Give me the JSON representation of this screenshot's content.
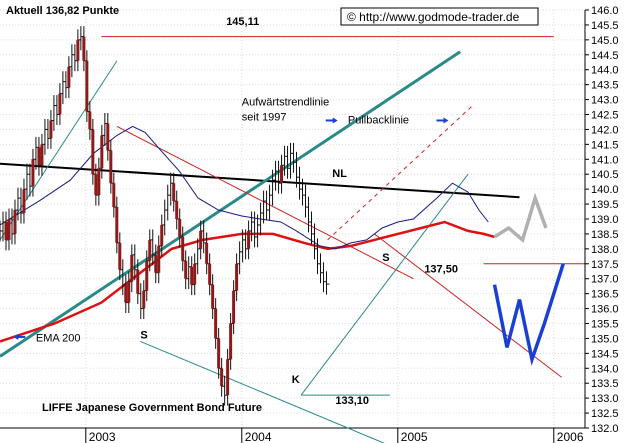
{
  "chart_data": {
    "type": "line",
    "title": "LIFFE Japanese Government Bond Future",
    "header": "Aktuell 136,82 Punkte",
    "source": "© http://www.godmode-trader.de",
    "y_axis": {
      "min": 132.0,
      "max": 146.0,
      "step": 0.5,
      "side": "right",
      "decimals": 1
    },
    "x_axis": {
      "years": [
        {
          "label": "2003",
          "x": 2003.0
        },
        {
          "label": "2004",
          "x": 2004.0
        },
        {
          "label": "2005",
          "x": 2005.0
        },
        {
          "label": "2006",
          "x": 2006.0
        }
      ],
      "range": [
        2002.45,
        2006.2
      ]
    },
    "grid": true,
    "price": {
      "start": 2002.45,
      "step": 0.0192,
      "closes": [
        138.6,
        138.9,
        138.3,
        139.0,
        138.5,
        139.3,
        139.7,
        139.2,
        140.0,
        140.5,
        140.1,
        141.0,
        141.4,
        140.8,
        141.5,
        142.0,
        141.7,
        142.3,
        142.8,
        142.5,
        143.2,
        143.6,
        143.4,
        144.1,
        144.5,
        144.3,
        145.0,
        145.11,
        144.3,
        142.6,
        142.0,
        140.5,
        139.8,
        140.7,
        141.8,
        142.2,
        141.3,
        140.2,
        139.4,
        138.2,
        137.3,
        136.8,
        136.2,
        136.9,
        137.8,
        137.3,
        136.5,
        136.0,
        136.6,
        137.6,
        138.3,
        137.8,
        137.2,
        138.1,
        138.8,
        139.3,
        139.8,
        140.2,
        139.6,
        139.0,
        138.4,
        137.6,
        137.0,
        137.4,
        136.8,
        137.5,
        138.0,
        138.6,
        138.2,
        137.5,
        136.8,
        136.0,
        135.0,
        134.0,
        133.4,
        133.1,
        134.3,
        135.5,
        136.6,
        137.5,
        137.9,
        138.3,
        138.0,
        138.6,
        138.9,
        138.4,
        138.8,
        139.2,
        139.6,
        139.3,
        139.8,
        140.3,
        140.6,
        140.2,
        140.8,
        141.1,
        140.7,
        141.2,
        140.9,
        140.4,
        140.0,
        139.8,
        139.4,
        138.9,
        138.5,
        138.0,
        137.5,
        137.2,
        136.9,
        136.82
      ]
    },
    "ema200": {
      "x": [
        2002.45,
        2002.8,
        2003.1,
        2003.35,
        2003.55,
        2003.75,
        2004.0,
        2004.2,
        2004.4,
        2004.55,
        2004.7,
        2004.85,
        2005.0,
        2005.15,
        2005.3,
        2005.45,
        2005.55,
        2005.62
      ],
      "y": [
        134.9,
        135.5,
        136.2,
        137.2,
        138.0,
        138.3,
        138.5,
        138.5,
        138.2,
        138.0,
        138.1,
        138.3,
        138.5,
        138.7,
        138.9,
        138.6,
        138.5,
        138.4
      ]
    },
    "avg_short": {
      "x": [
        2002.45,
        2002.7,
        2002.9,
        2003.05,
        2003.2,
        2003.3,
        2003.38,
        2003.48,
        2003.6,
        2003.72,
        2003.85,
        2004.0,
        2004.12,
        2004.25,
        2004.35,
        2004.5,
        2004.6,
        2004.7,
        2004.8,
        2004.9,
        2005.0,
        2005.1,
        2005.25,
        2005.35,
        2005.45,
        2005.52,
        2005.58
      ],
      "y": [
        138.8,
        139.6,
        140.3,
        141.2,
        141.8,
        142.1,
        141.9,
        141.3,
        140.6,
        139.7,
        139.3,
        139.1,
        139.0,
        138.9,
        138.6,
        138.1,
        138.0,
        138.2,
        138.3,
        138.7,
        138.9,
        139.0,
        139.7,
        140.2,
        139.9,
        139.3,
        138.9
      ]
    },
    "lines": [
      {
        "name": "resistance-145",
        "color": "#cc2222",
        "width": 1,
        "dash": "",
        "from": [
          2003.1,
          145.11
        ],
        "to": [
          2006.0,
          145.11
        ]
      },
      {
        "name": "support-137-5",
        "color": "#cc2222",
        "width": 1,
        "dash": "",
        "from": [
          2005.55,
          137.5
        ],
        "to": [
          2006.2,
          137.5
        ]
      },
      {
        "name": "low-133-1",
        "color": "#2a8a8a",
        "width": 1,
        "dash": "",
        "from": [
          2004.38,
          133.1
        ],
        "to": [
          2004.95,
          133.1
        ]
      },
      {
        "name": "neckline",
        "color": "#000000",
        "width": 2,
        "dash": "",
        "from": [
          2002.45,
          140.85
        ],
        "to": [
          2005.78,
          139.73
        ]
      },
      {
        "name": "uptrend-since-1997",
        "color": "#2a8a8a",
        "width": 3,
        "dash": "",
        "from": [
          2002.45,
          134.4
        ],
        "to": [
          2005.4,
          144.6
        ]
      },
      {
        "name": "thin-trend-2003",
        "color": "#2a8a8a",
        "width": 1,
        "dash": "",
        "from": [
          2002.45,
          138.3
        ],
        "to": [
          2003.2,
          144.3
        ]
      },
      {
        "name": "upper-wedge",
        "color": "#cc2222",
        "width": 1,
        "dash": "",
        "from": [
          2003.2,
          142.1
        ],
        "to": [
          2005.1,
          137.0
        ]
      },
      {
        "name": "lower-channel",
        "color": "#cc2222",
        "width": 1,
        "dash": "",
        "from": [
          2004.85,
          138.5
        ],
        "to": [
          2006.05,
          133.7
        ]
      },
      {
        "name": "pullback-line",
        "color": "#cc2222",
        "width": 1,
        "dash": "4,4",
        "from": [
          2004.55,
          138.3
        ],
        "to": [
          2005.48,
          142.8
        ]
      },
      {
        "name": "lower-fan-teal",
        "color": "#2a8a8a",
        "width": 1,
        "dash": "",
        "from": [
          2004.38,
          133.1
        ],
        "to": [
          2005.45,
          140.5
        ]
      },
      {
        "name": "support-fan",
        "color": "#2a8a8a",
        "width": 1,
        "dash": "",
        "from": [
          2003.35,
          134.9
        ],
        "to": [
          2005.0,
          131.3
        ]
      }
    ],
    "projection_blue": {
      "x": [
        2005.62,
        2005.7,
        2005.78,
        2005.86,
        2005.94,
        2006.06
      ],
      "y": [
        136.8,
        134.7,
        136.3,
        134.3,
        135.5,
        137.5
      ]
    },
    "projection_gray": {
      "x": [
        2005.62,
        2005.71,
        2005.8,
        2005.88,
        2005.95
      ],
      "y": [
        138.4,
        138.7,
        138.3,
        139.7,
        138.7
      ]
    },
    "annotations": [
      {
        "key": "a145",
        "text": "145,11",
        "x": 2003.9,
        "y": 145.5,
        "color": "#000000",
        "bold": true
      },
      {
        "key": "trend1",
        "text": "Aufwärtstrendlinie",
        "x": 2004.0,
        "y": 142.8,
        "color": "#000000",
        "bold": false
      },
      {
        "key": "trend2",
        "text": "seit 1997",
        "x": 2004.0,
        "y": 142.3,
        "color": "#000000",
        "bold": false
      },
      {
        "key": "pullback",
        "text": "Pullbacklinie",
        "x": 2004.68,
        "y": 142.2,
        "color": "#000000",
        "bold": false
      },
      {
        "key": "nl",
        "text": "NL",
        "x": 2004.58,
        "y": 140.4,
        "color": "#000000",
        "bold": true
      },
      {
        "key": "s1",
        "text": "S",
        "x": 2003.35,
        "y": 135.0,
        "color": "#000000",
        "bold": true
      },
      {
        "key": "s2",
        "text": "S",
        "x": 2004.9,
        "y": 137.6,
        "color": "#000000",
        "bold": true
      },
      {
        "key": "k",
        "text": "K",
        "x": 2004.32,
        "y": 133.5,
        "color": "#000000",
        "bold": true
      },
      {
        "key": "a137",
        "text": "137,50",
        "x": 2005.17,
        "y": 137.2,
        "color": "#000000",
        "bold": true
      },
      {
        "key": "a133",
        "text": "133,10",
        "x": 2004.6,
        "y": 132.8,
        "color": "#000000",
        "bold": true
      },
      {
        "key": "ema",
        "text": "EMA 200",
        "x": 2002.68,
        "y": 134.9,
        "color": "#000000",
        "bold": false
      }
    ]
  }
}
